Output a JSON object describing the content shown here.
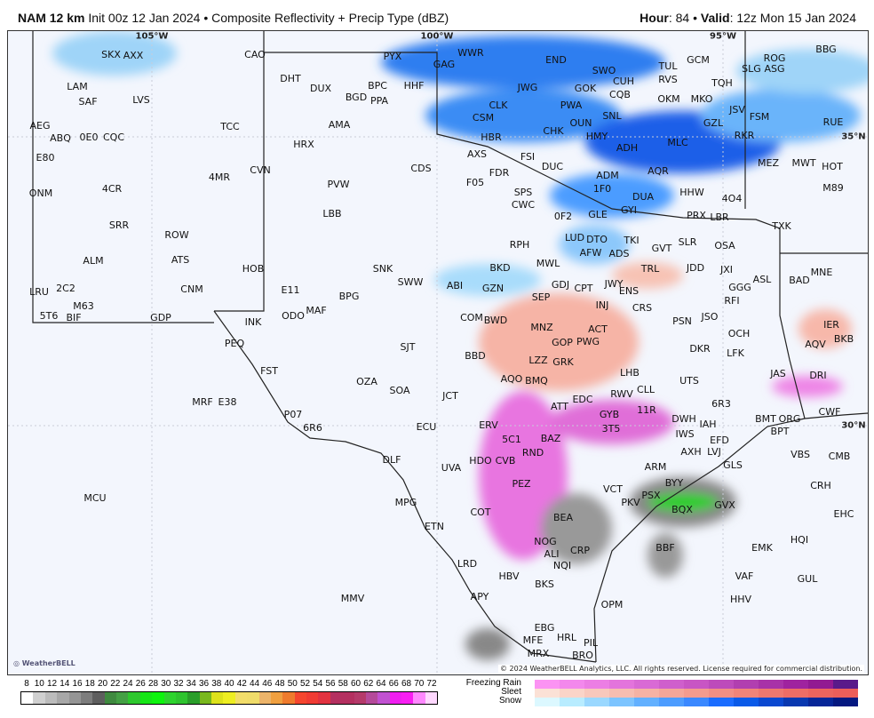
{
  "header": {
    "model": "NAM 12 km",
    "init": "Init 00z 12 Jan 2024",
    "product": "Composite Reflectivity + Precip Type (dBZ)",
    "hour_label": "Hour",
    "hour": "84",
    "valid_label": "Valid",
    "valid": "12z Mon 15 Jan 2024"
  },
  "gridlabels": {
    "lon105": "105°W",
    "lon100": "100°W",
    "lon95": "95°W",
    "lat35": "35°N",
    "lat30": "30°N"
  },
  "stations": [
    "SKX",
    "AXX",
    "CAO",
    "PYX",
    "GAG",
    "WWR",
    "END",
    "BBG",
    "ROG",
    "SLG",
    "ASG",
    "TUL",
    "GCM",
    "SWO",
    "RVS",
    "TQH",
    "LAM",
    "SAF",
    "LVS",
    "DHT",
    "DUX",
    "BGD",
    "BPC",
    "PPA",
    "HHF",
    "JWG",
    "GOK",
    "CUH",
    "CQB",
    "OKM",
    "MKO",
    "CLK",
    "PWA",
    "AMA",
    "CSM",
    "SNL",
    "JSV",
    "GZL",
    "FSM",
    "RUE",
    "TCC",
    "AEG",
    "ABQ",
    "0E0",
    "CQC",
    "CHK",
    "OUN",
    "HMY",
    "HBR",
    "MLC",
    "RKR",
    "HRX",
    "ADH",
    "AXS",
    "FSI",
    "DUC",
    "MEZ",
    "MWT",
    "HOT",
    "E80",
    "CDS",
    "CVN",
    "ADM",
    "AQR",
    "FDR",
    "F05",
    "1F0",
    "4MR",
    "ONM",
    "4CR",
    "PVW",
    "SPS",
    "CWC",
    "DUA",
    "HHW",
    "4O4",
    "M89",
    "LBB",
    "0F2",
    "GLE",
    "GYI",
    "PRX",
    "LBR",
    "SRR",
    "TXK",
    "RPH",
    "LUD",
    "DTO",
    "TKI",
    "SLR",
    "OSA",
    "ROW",
    "AFW",
    "ADS",
    "GVT",
    "ALM",
    "ATS",
    "MWL",
    "BKD",
    "HOB",
    "SNK",
    "TRL",
    "JDD",
    "JXI",
    "ASL",
    "MNE",
    "BAD",
    "GDJ",
    "CPT",
    "JWY",
    "ENS",
    "GGG",
    "SWW",
    "ABI",
    "GZN",
    "E11",
    "LRU",
    "2C2",
    "CNM",
    "BPG",
    "SEP",
    "INJ",
    "RFI",
    "CRS",
    "M63",
    "5T6",
    "BIF",
    "GDP",
    "INK",
    "ODO",
    "MAF",
    "COM",
    "BWD",
    "MNZ",
    "PSN",
    "JSO",
    "ACT",
    "IER",
    "OCH",
    "PEQ",
    "GOP",
    "PWG",
    "SJT",
    "AQV",
    "DKR",
    "LFK",
    "BBD",
    "LZZ",
    "GRK",
    "BKB",
    "FST",
    "LHB",
    "JAS",
    "DRI",
    "OZA",
    "AQO",
    "BMQ",
    "UTS",
    "SOA",
    "CLL",
    "RWV",
    "JCT",
    "ATT",
    "EDC",
    "6R3",
    "MRF",
    "E38",
    "11R",
    "GYB",
    "BMT",
    "ORG",
    "CWF",
    "BPT",
    "DWH",
    "IAH",
    "P07",
    "6R6",
    "ERV",
    "3T5",
    "IWS",
    "ECU",
    "5C1",
    "BAZ",
    "AXH",
    "LVJ",
    "EFD",
    "RND",
    "DLF",
    "VBS",
    "CMB",
    "HDO",
    "CVB",
    "GLS",
    "ARM",
    "UVA",
    "CRH",
    "PEZ",
    "BYY",
    "VCT",
    "EHC",
    "MPG",
    "PKV",
    "PSX",
    "GVX",
    "BQX",
    "COT",
    "BEA",
    "MCU",
    "ETN",
    "EMK",
    "HQI",
    "NOG",
    "ALI",
    "CRP",
    "BBF",
    "LRD",
    "NQI",
    "VAF",
    "GUL",
    "HBV",
    "BKS",
    "MMV",
    "APY",
    "HHV",
    "OPM",
    "EBG",
    "HRL",
    "MFE",
    "PIL",
    "MRX",
    "BRO"
  ],
  "copyright": "© 2024 WeatherBELL Analytics, LLC. All rights reserved. License required for commercial distribution.",
  "logo": "WeatherBELL",
  "legend": {
    "dbz_ticks": "8 10 12 14 16 18 20 22 24 26 28 30 32 34 36 38 40 42 44 46 48 50 52 54 56 58 60 62 64 66 68 70 72",
    "dbz_colors": [
      "#ffffff",
      "#d0d0d0",
      "#bcbcbc",
      "#a8a8a8",
      "#959595",
      "#7d7d7d",
      "#5e5e5e",
      "#3f8a3f",
      "#44a044",
      "#2ec82e",
      "#16e616",
      "#0ef40e",
      "#2ed42e",
      "#2fc42f",
      "#2a9e2a",
      "#79b81d",
      "#dde21c",
      "#eeee22",
      "#f2dd6a",
      "#f0dc6a",
      "#ecb46a",
      "#f0a040",
      "#ef7b2d",
      "#f5462f",
      "#f03c34",
      "#e23340",
      "#b43060",
      "#b43060",
      "#b53a6a",
      "#b54a9a",
      "#c152d1",
      "#f01ef0",
      "#f81ff2",
      "#ff88ff",
      "#ffd8ff"
    ],
    "freezing_rain_label": "Freezing Rain",
    "sleet_label": "Sleet",
    "snow_label": "Snow",
    "freezing_rain_colors": [
      "#fb93f3",
      "#f388ec",
      "#ec7ee4",
      "#e374dc",
      "#d96ad5",
      "#cf5fcc",
      "#c855c4",
      "#bd4bbb",
      "#b13fb0",
      "#a832a8",
      "#9f239f",
      "#921a92",
      "#5a1a8a"
    ],
    "sleet_colors": [
      "#fbe1d6",
      "#fad4c8",
      "#f8c8bc",
      "#f7bdb0",
      "#f5b2a4",
      "#f4a699",
      "#f39b8e",
      "#f18f84",
      "#f08479",
      "#ee786f",
      "#ed6d66",
      "#ec645e",
      "#ec5e5a"
    ],
    "snow_colors": [
      "#dcf8ff",
      "#b8ecff",
      "#9ad8ff",
      "#7cc4ff",
      "#62b0ff",
      "#4c9cff",
      "#3a88ff",
      "#1a6cff",
      "#0a5ae8",
      "#0a48d0",
      "#0838b0",
      "#062698",
      "#041880"
    ]
  }
}
